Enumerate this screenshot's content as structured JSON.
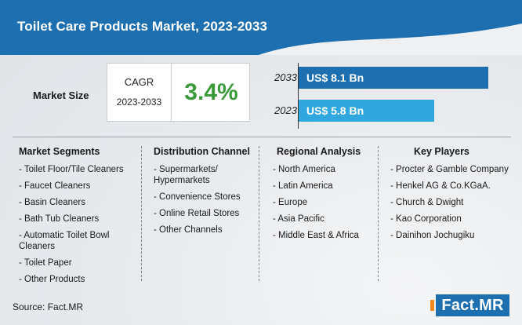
{
  "title": "Toilet Care Products Market, 2023-2033",
  "market_size_label": "Market Size",
  "cagr": {
    "label": "CAGR",
    "period": "2023-2033",
    "value": "3.4%"
  },
  "colors": {
    "header": "#1d6fb0",
    "bar_2033": "#1d6fb0",
    "bar_2023": "#31a7e0",
    "cagr_value": "#3a9a3b"
  },
  "chart_data": {
    "type": "bar",
    "orientation": "horizontal",
    "categories": [
      "2033",
      "2023"
    ],
    "values": [
      8.1,
      5.8
    ],
    "value_labels": [
      "US$ 8.1 Bn",
      "US$ 5.8 Bn"
    ],
    "xlim": [
      0,
      8.5
    ]
  },
  "columns": [
    {
      "title": "Market Segments",
      "items": [
        "- Toilet Floor/Tile Cleaners",
        "- Faucet Cleaners",
        "- Basin Cleaners",
        "- Bath Tub Cleaners",
        "- Automatic Toilet Bowl Cleaners",
        "- Toilet Paper",
        "- Other Products"
      ]
    },
    {
      "title": "Distribution Channel",
      "items": [
        "- Supermarkets/ Hypermarkets",
        "- Convenience Stores",
        "- Online Retail Stores",
        "- Other Channels"
      ]
    },
    {
      "title": "Regional Analysis",
      "items": [
        "- North America",
        "- Latin America",
        "- Europe",
        "- Asia Pacific",
        "- Middle East & Africa"
      ]
    },
    {
      "title": "Key Players",
      "items": [
        "- Procter & Gamble Company",
        "- Henkel AG & Co.KGaA.",
        "- Church & Dwight",
        "- Kao Corporation",
        "- Dainihon Jochugiku"
      ]
    }
  ],
  "source": "Source: Fact.MR",
  "logo": "Fact.MR"
}
